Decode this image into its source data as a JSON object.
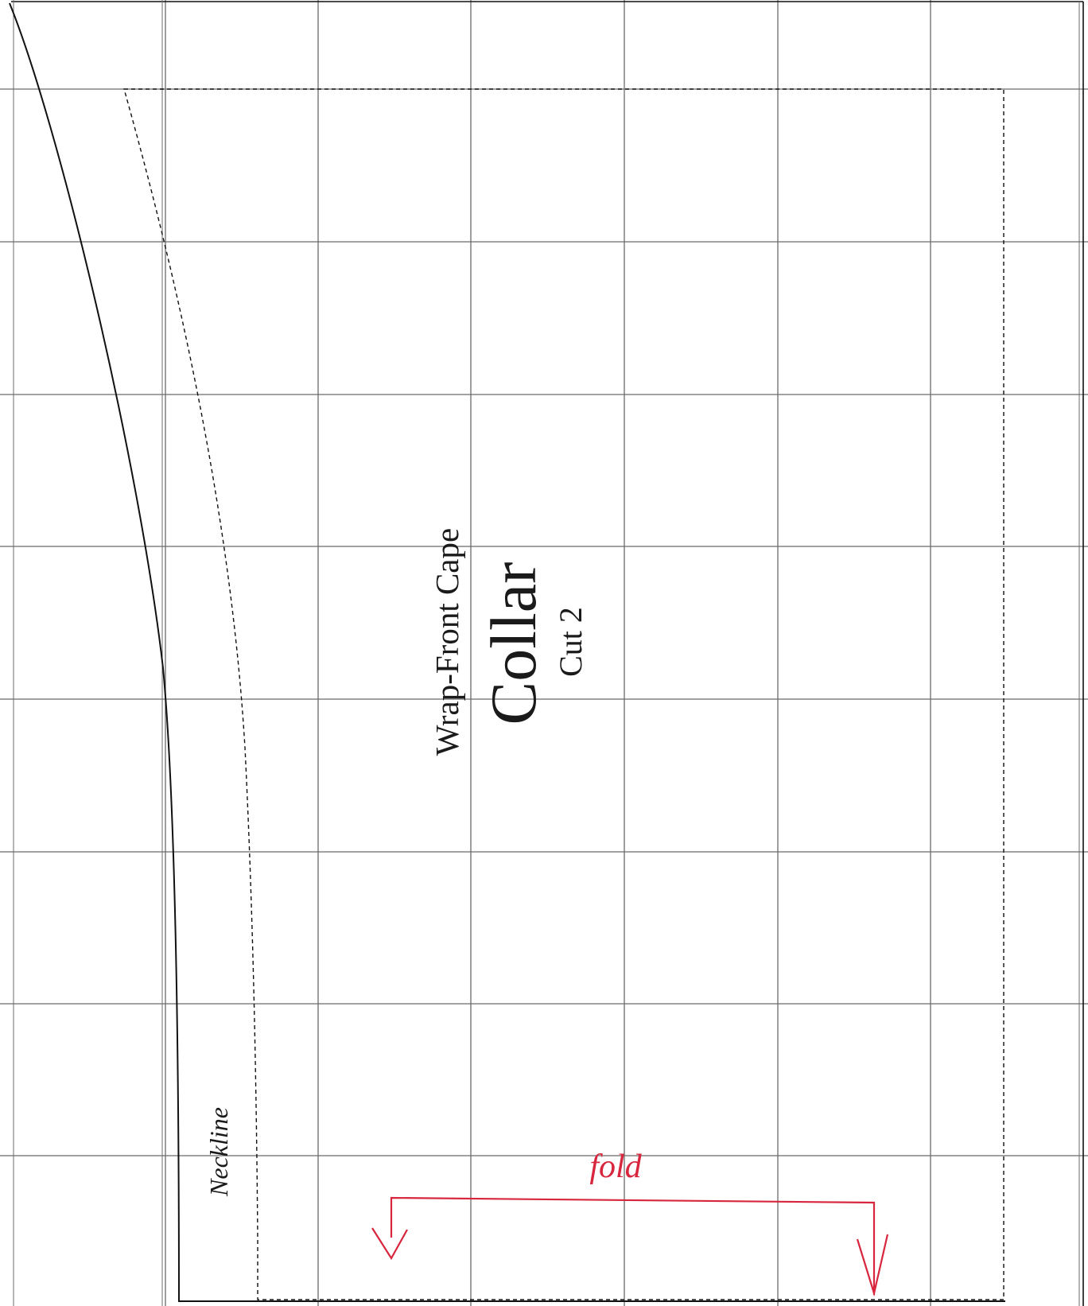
{
  "pattern": {
    "garment": "Wrap-Front Cape",
    "piece": "Collar",
    "cut": "Cut 2",
    "edge_label": "Neckline",
    "fold_label": "fold"
  },
  "colors": {
    "grid": "#6b6b6b",
    "outline": "#111111",
    "fold": "#d7263d",
    "text": "#1a1a1a",
    "background": "#ffffff"
  }
}
